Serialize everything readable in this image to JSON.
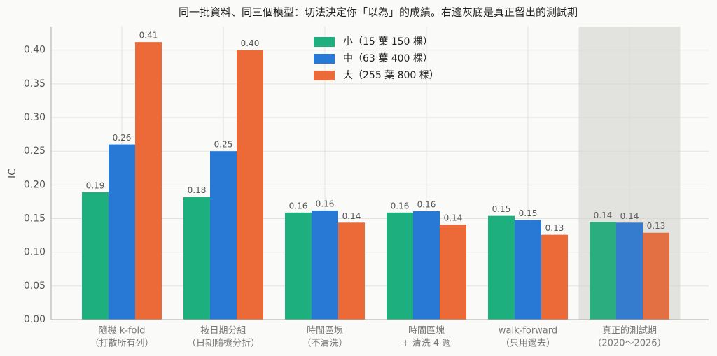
{
  "chart_data": {
    "type": "bar",
    "title": "同一批資料、同三個模型：切法決定你「以為」的成績。右邊灰底是真正留出的測試期",
    "y_label": "IC",
    "categories": [
      [
        "隨機 k-fold",
        "（打散所有列）"
      ],
      [
        "按日期分組",
        "（日期隨機分折）"
      ],
      [
        "時間區塊",
        "（不清洗）"
      ],
      [
        "時間區塊",
        "+ 清洗 4 週"
      ],
      [
        "walk-forward",
        "（只用過去）"
      ],
      [
        "真正的測試期",
        "（2020～2026）"
      ]
    ],
    "series": [
      {
        "name": "小（15 葉 150 棵）",
        "color": "#1db07e",
        "values": [
          0.189,
          0.182,
          0.159,
          0.159,
          0.154,
          0.145
        ],
        "value_labels": [
          "0.19",
          "0.18",
          "0.16",
          "0.16",
          "0.15",
          "0.14"
        ]
      },
      {
        "name": "中（63 葉 400 棵）",
        "color": "#2878d6",
        "values": [
          0.26,
          0.25,
          0.162,
          0.161,
          0.148,
          0.144
        ],
        "value_labels": [
          "0.26",
          "0.25",
          "0.16",
          "0.16",
          "0.15",
          "0.14"
        ]
      },
      {
        "name": "大（255 葉 800 棵）",
        "color": "#ec6a37",
        "values": [
          0.412,
          0.4,
          0.144,
          0.141,
          0.126,
          0.129
        ],
        "value_labels": [
          "0.41",
          "0.40",
          "0.14",
          "0.14",
          "0.13",
          "0.13"
        ]
      }
    ],
    "ylim": [
      0,
      0.435
    ],
    "yticks": [
      {
        "value": 0,
        "label": "0.00"
      },
      {
        "value": 0.05,
        "label": "0.05"
      },
      {
        "value": 0.1,
        "label": "0.10"
      },
      {
        "value": 0.15,
        "label": "0.15"
      },
      {
        "value": 0.2,
        "label": "0.20"
      },
      {
        "value": 0.25,
        "label": "0.25"
      },
      {
        "value": 0.3,
        "label": "0.30"
      },
      {
        "value": 0.35,
        "label": "0.35"
      },
      {
        "value": 0.4,
        "label": "0.40"
      }
    ],
    "grid": true,
    "shaded_categories": [
      5
    ],
    "legend": "top-center"
  }
}
